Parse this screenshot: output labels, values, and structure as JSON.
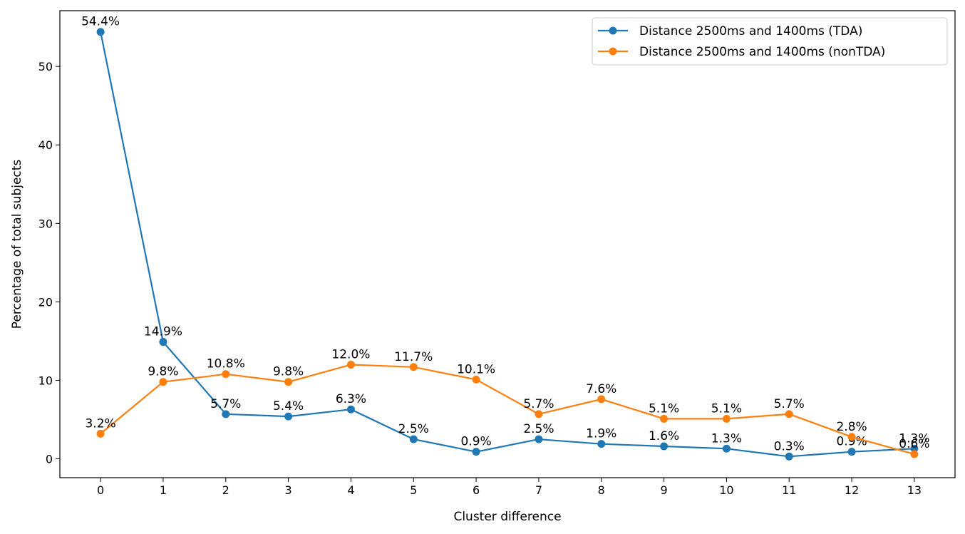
{
  "chart_data": {
    "type": "line",
    "title": "",
    "xlabel": "Cluster difference",
    "ylabel": "Percentage of total subjects",
    "x": [
      0,
      1,
      2,
      3,
      4,
      5,
      6,
      7,
      8,
      9,
      10,
      11,
      12,
      13
    ],
    "xticks": [
      "0",
      "1",
      "2",
      "3",
      "4",
      "5",
      "6",
      "7",
      "8",
      "9",
      "10",
      "11",
      "12",
      "13"
    ],
    "yticks": [
      0,
      10,
      20,
      30,
      40,
      50
    ],
    "xlim": [
      -0.65,
      13.65
    ],
    "ylim": [
      -2.4,
      57.1
    ],
    "grid": false,
    "legend_position": "top-right",
    "series": [
      {
        "name": "Distance 2500ms and 1400ms (TDA)",
        "color": "#1f77b4",
        "values": [
          54.4,
          14.9,
          5.7,
          5.4,
          6.3,
          2.5,
          0.9,
          2.5,
          1.9,
          1.6,
          1.3,
          0.3,
          0.9,
          1.3
        ],
        "labels": [
          "54.4%",
          "14.9%",
          "5.7%",
          "5.4%",
          "6.3%",
          "2.5%",
          "0.9%",
          "2.5%",
          "1.9%",
          "1.6%",
          "1.3%",
          "0.3%",
          "0.9%",
          "1.3%"
        ]
      },
      {
        "name": "Distance 2500ms and 1400ms (nonTDA)",
        "color": "#ff7f0e",
        "values": [
          3.2,
          9.8,
          10.8,
          9.8,
          12.0,
          11.7,
          10.1,
          5.7,
          7.6,
          5.1,
          5.1,
          5.7,
          2.8,
          0.6
        ],
        "labels": [
          "3.2%",
          "9.8%",
          "10.8%",
          "9.8%",
          "12.0%",
          "11.7%",
          "10.1%",
          "5.7%",
          "7.6%",
          "5.1%",
          "5.1%",
          "5.7%",
          "2.8%",
          "0.6%"
        ]
      }
    ]
  }
}
